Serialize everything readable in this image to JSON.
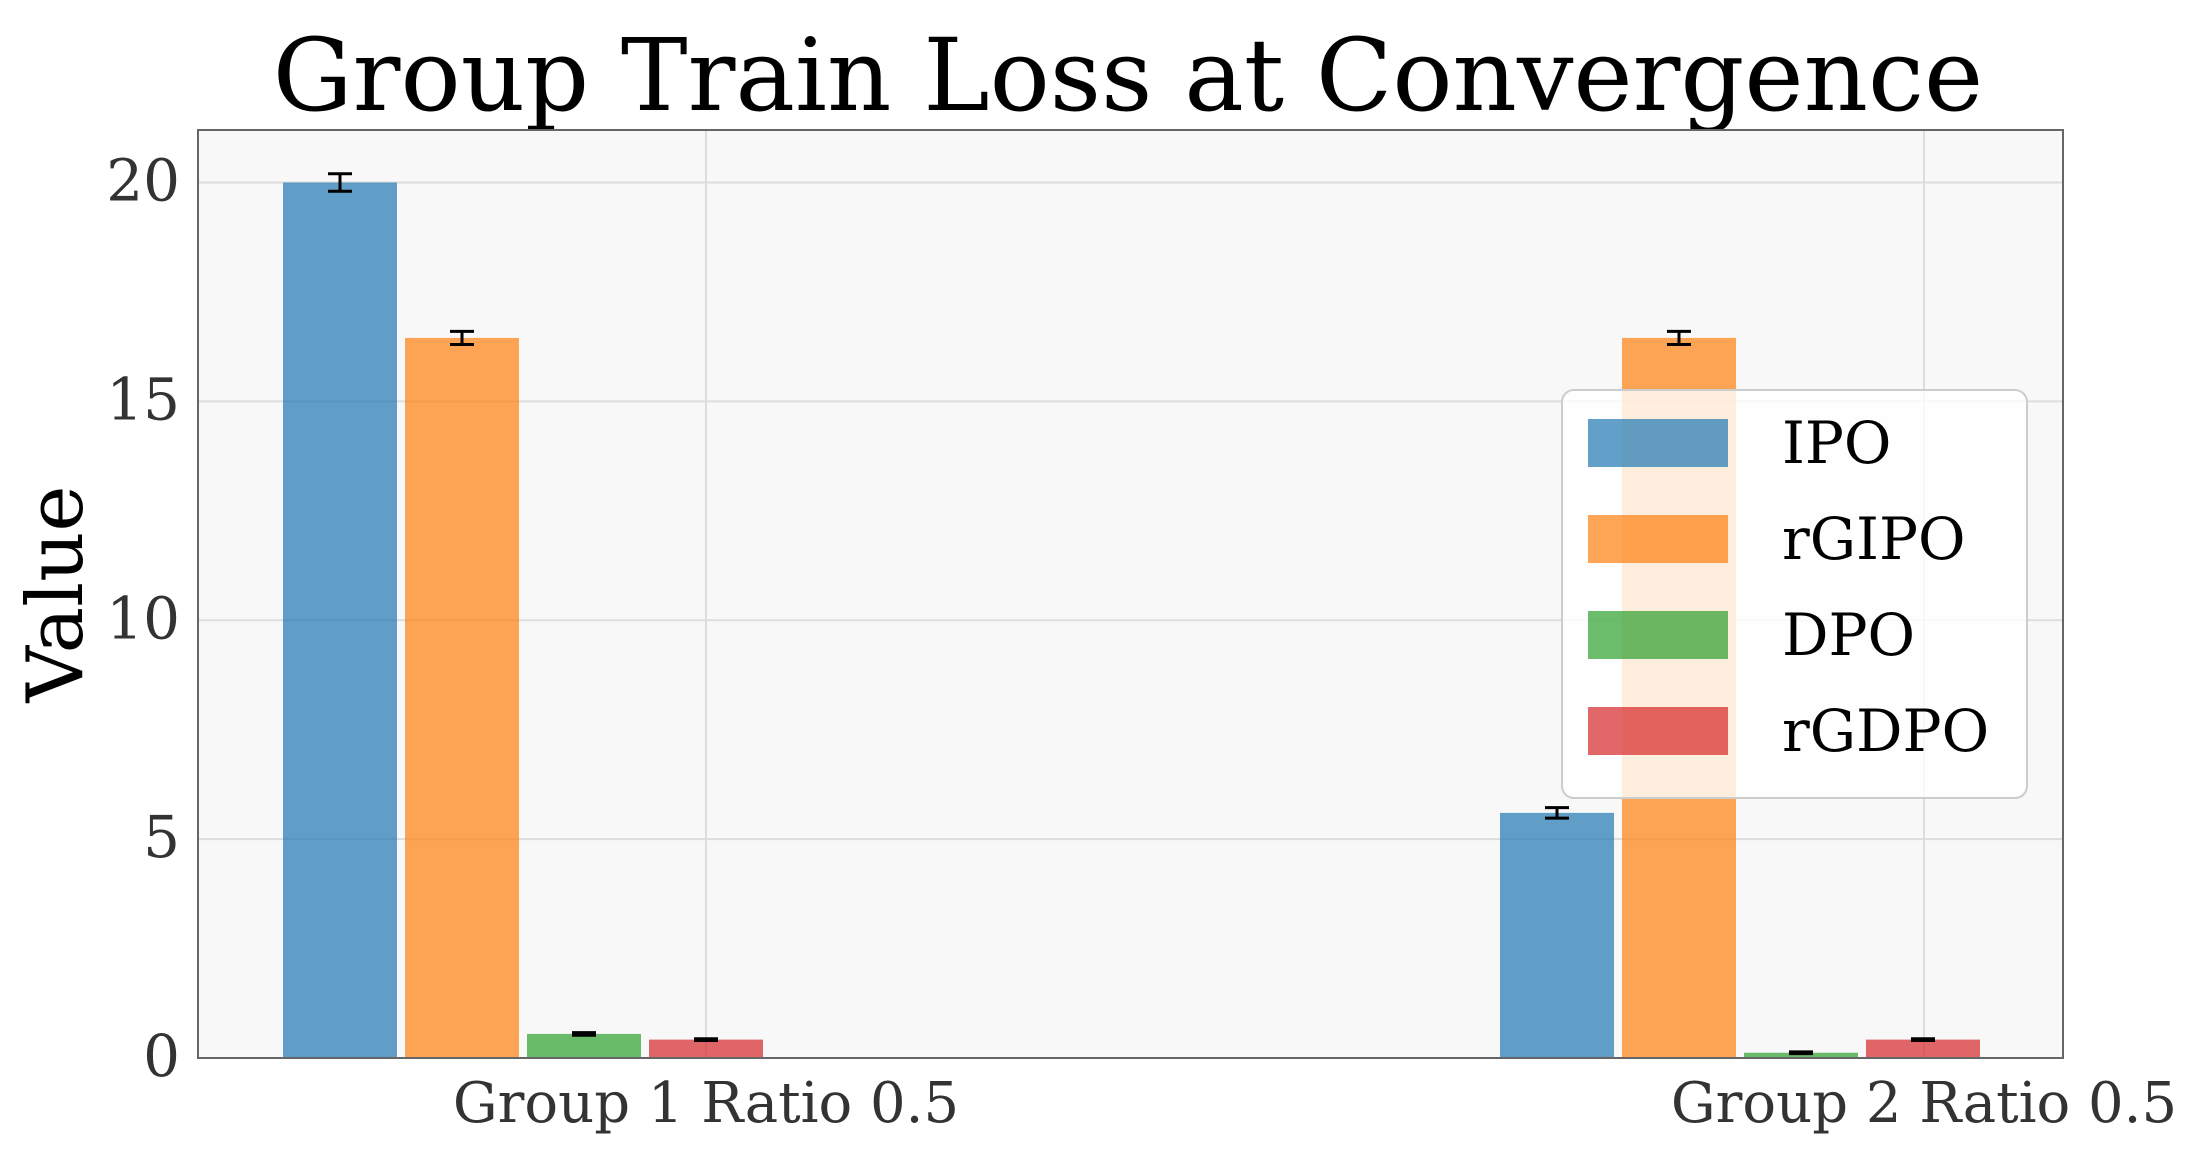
{
  "chart_data": {
    "type": "bar",
    "title": "Group Train Loss at Convergence",
    "xlabel": "",
    "ylabel": "Value",
    "ylim": [
      0,
      21.2
    ],
    "yticks": [
      0,
      5,
      10,
      15,
      20
    ],
    "ytick_labels": [
      "0",
      "5",
      "10",
      "15",
      "20"
    ],
    "categories": [
      "Group 1 Ratio 0.5",
      "Group 2 Ratio 0.5"
    ],
    "grid": true,
    "legend_position": "center-right",
    "series": [
      {
        "name": "IPO",
        "color": "#1f77b4",
        "values": [
          20.0,
          5.6
        ],
        "errors": [
          0.2,
          0.12
        ]
      },
      {
        "name": "rGIPO",
        "color": "#ff7f0e",
        "values": [
          16.45,
          16.45
        ],
        "errors": [
          0.15,
          0.15
        ]
      },
      {
        "name": "DPO",
        "color": "#2ca02c",
        "values": [
          0.55,
          0.12
        ],
        "errors": [
          0.03,
          0.02
        ]
      },
      {
        "name": "rGDPO",
        "color": "#d62728",
        "values": [
          0.42,
          0.42
        ],
        "errors": [
          0.02,
          0.02
        ]
      }
    ]
  }
}
